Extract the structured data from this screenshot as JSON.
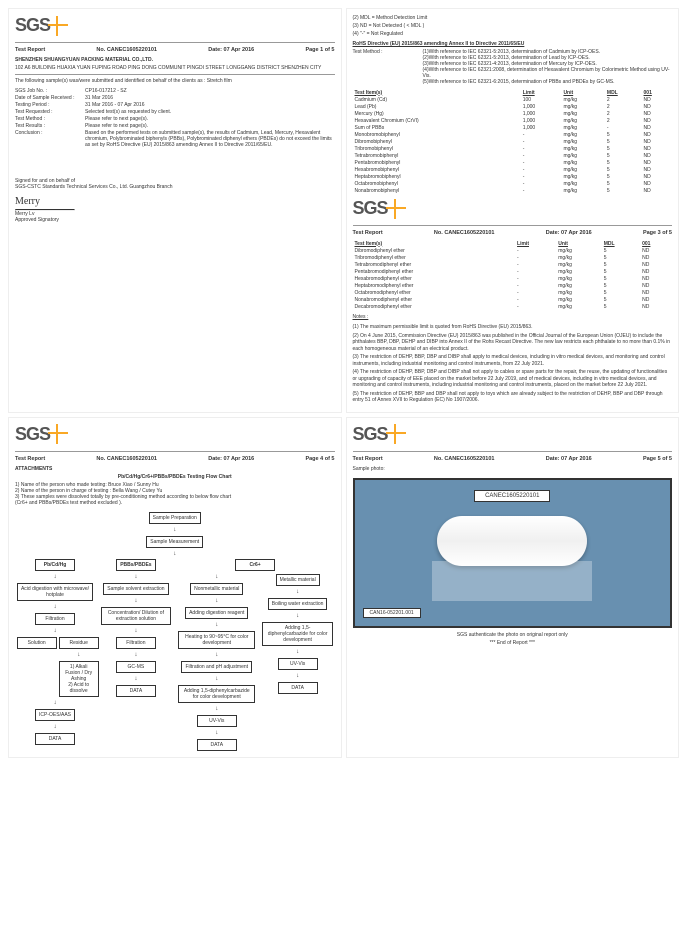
{
  "logo_text": "SGS",
  "report_label": "Test Report",
  "report_no_label": "No.",
  "report_no": "CANEC1605220101",
  "date_label": "Date:",
  "date": "07 Apr 2016",
  "page1": "Page 1 of 5",
  "page3": "Page 3 of 5",
  "page4": "Page 4 of 5",
  "page5": "Page 5 of 5",
  "company": "SHENZHEN SHUANGYUAN PACKING MATERIAL CO.,LTD.",
  "address": "102 A6 BUILDING HUAXIA YUAN FUPING ROAD PING DONG COMMUNIT PINGDI STREET LONGGANG DISTRICT SHENZHEN CITY",
  "intro": "The following sample(s) was/were submitted and identified on behalf of the clients as : Stretch film",
  "kv": {
    "job_no_k": "SGS Job No. :",
    "job_no_v": "CP16-017212 - SZ",
    "recv_k": "Date of Sample Received :",
    "recv_v": "31 Mar 2016",
    "period_k": "Testing Period :",
    "period_v": "31 Mar 2016 - 07 Apr 2016",
    "req_k": "Test Requested :",
    "req_v": "Selected test(s) as requested by client.",
    "method_k": "Test Method :",
    "method_v": "Please refer to next page(s).",
    "results_k": "Test Results :",
    "results_v": "Please refer to next page(s).",
    "concl_k": "Conclusion :",
    "concl_v": "Based on the performed tests on submitted sample(s), the results of Cadmium, Lead, Mercury, Hexavalent chromium, Polybrominated biphenyls (PBBs), Polybrominated diphenyl ethers (PBDEs) do not exceed  the limits as set by RoHS Directive (EU) 2015/863 amending Annex II to Directive 2011/65/EU."
  },
  "signed": "Signed for and on behalf of",
  "signed2": "SGS-CSTC Standards Technical Services Co., Ltd. Guangzhou Branch",
  "sig_name": "Merry",
  "sig_title1": "Merry Lv",
  "sig_title2": "Approved Signatory",
  "top_notes": [
    "(2) MDL = Method Detection Limit",
    "(3) ND = Not Detected ( < MDL )",
    "(4) \"-\" = Not Regulated"
  ],
  "directive_title": "RoHS Directive (EU) 2015/863 amending Annex II to Directive 2011/65/EU",
  "method_label2": "Test Method :",
  "methods": [
    "(1)With reference to IEC 62321-5:2013, determination of Cadmium by ICP-OES.",
    "(2)With reference to IEC 62321-5:2013, determination of Lead by ICP-OES.",
    "(3)With reference to IEC 62321-4:2013, determination of Mercury by ICP-OES.",
    "(4)With reference to IEC 62321:2008, determination of Hexavalent Chromium by Colorimetric Method using UV-Vis.",
    "(5)With reference to IEC 62321-6:2015, determination of PBBs and PBDEs by GC-MS."
  ],
  "table_headers": [
    "Test Item(s)",
    "Limit",
    "Unit",
    "MDL",
    "001"
  ],
  "table1": [
    [
      "Cadmium (Cd)",
      "100",
      "mg/kg",
      "2",
      "ND"
    ],
    [
      "Lead (Pb)",
      "1,000",
      "mg/kg",
      "2",
      "ND"
    ],
    [
      "Mercury (Hg)",
      "1,000",
      "mg/kg",
      "2",
      "ND"
    ],
    [
      "Hexavalent Chromium (CrVI)",
      "1,000",
      "mg/kg",
      "2",
      "ND"
    ],
    [
      "Sum of PBBs",
      "1,000",
      "mg/kg",
      "-",
      "ND"
    ],
    [
      "Monobromobiphenyl",
      "-",
      "mg/kg",
      "5",
      "ND"
    ],
    [
      "Dibromobiphenyl",
      "-",
      "mg/kg",
      "5",
      "ND"
    ],
    [
      "Tribromobiphenyl",
      "-",
      "mg/kg",
      "5",
      "ND"
    ],
    [
      "Tetrabromobiphenyl",
      "-",
      "mg/kg",
      "5",
      "ND"
    ],
    [
      "Pentabromobiphenyl",
      "-",
      "mg/kg",
      "5",
      "ND"
    ],
    [
      "Hexabromobiphenyl",
      "-",
      "mg/kg",
      "5",
      "ND"
    ],
    [
      "Heptabromobiphenyl",
      "-",
      "mg/kg",
      "5",
      "ND"
    ],
    [
      "Octabromobiphenyl",
      "-",
      "mg/kg",
      "5",
      "ND"
    ],
    [
      "Nonabromobiphenyl",
      "-",
      "mg/kg",
      "5",
      "ND"
    ]
  ],
  "table2": [
    [
      "Dibromodiphenyl ether",
      "-",
      "mg/kg",
      "5",
      "ND"
    ],
    [
      "Tribromodiphenyl ether",
      "-",
      "mg/kg",
      "5",
      "ND"
    ],
    [
      "Tetrabromodiphenyl ether",
      "-",
      "mg/kg",
      "5",
      "ND"
    ],
    [
      "Pentabromodiphenyl ether",
      "-",
      "mg/kg",
      "5",
      "ND"
    ],
    [
      "Hexabromodiphenyl ether",
      "-",
      "mg/kg",
      "5",
      "ND"
    ],
    [
      "Heptabromodiphenyl ether",
      "-",
      "mg/kg",
      "5",
      "ND"
    ],
    [
      "Octabromodiphenyl ether",
      "-",
      "mg/kg",
      "5",
      "ND"
    ],
    [
      "Nonabromodiphenyl ether",
      "-",
      "mg/kg",
      "5",
      "ND"
    ],
    [
      "Decabromodiphenyl ether",
      "-",
      "mg/kg",
      "5",
      "ND"
    ]
  ],
  "notes_label": "Notes :",
  "notes_list": [
    "(1) The maximum permissible limit is quoted from RoHS Directive (EU) 2015/863.",
    "(2) On 4 June  2015, Commission Directive (EU) 2015/863 was published in the Official Journal of the European Union (OJEU) to include the phthalates BBP, DBP, DEHP and DIBP into Annex II of the Rohs Recast Directive. The new law restricts each phthalate to no more than 0.1% in each homogeneous material of an electrical product.",
    "(3) The restriction of DEHP, BBP, DBP and DIBP shall apply to medical devices, including in vitro medical devices, and monitoring and control instruments, including industrial monitoring and control instruments, from 22 July 2021.",
    "(4) The restriction of DEHP, BBP, DBP and DIBP shall not apply to cables or spare parts for the repair, the reuse, the updating of functionalities or upgrading of capacity of EEE placed on the market before 22 July 2019, and of medical devices, including in vitro medical devices, and monitoring and control instruments, including industrial monitoring and control instruments, placed on the market before 22 July 2021.",
    "(5) The restriction of DEHP, BBP and DBP shall not apply to toys which are already subject to the restriction of DEHP, BBP and DBP through entry 51 of Annex XVII to Regulation (EC) No 1907/2006."
  ],
  "attachments": "ATTACHMENTS",
  "flow_title": "Pb/Cd/Hg/Cr6+/PBBs/PBDEs Testing Flow Chart",
  "flow_notes": [
    "1) Name of the person who made testing:  Bruce Xiao / Sunny Hu",
    "2) Name of the person in charge of testing : Bella Wang / Cutey Yu",
    "3) These samples were dissolved totally by  pre-conditioning method according to below flow chart",
    "    (Cr6+ and PBBs/PBDEs test method excluded )."
  ],
  "flow": {
    "b1": "Sample Preparation",
    "b2": "Sample Measurement",
    "c1": "Pb/Cd/Hg",
    "c2": "PBBs/PBDEs",
    "c3": "Cr6+",
    "a1": "Acid digestion with microwave/ hotplate",
    "a2": "Filtration",
    "a3": "Solution",
    "a4": "Residue",
    "a5": "1) Alkali Fusion / Dry Ashing\n2) Acid to dissolve",
    "a6": "ICP-OES/AAS",
    "a7": "DATA",
    "p1": "Sample solvent extraction",
    "p2": "Concentration/ Dilution of extraction solution",
    "p3": "Filtration",
    "p4": "GC-MS",
    "p5": "DATA",
    "n1": "Nonmetallic material",
    "n2": "Adding digestion reagent",
    "n3": "Heating to 90~95°C for color development",
    "n4": "Filtration and pH adjustment",
    "n5": "Adding 1,5-diphenylcarbazide for color development",
    "n6": "UV-Vis",
    "n7": "DATA",
    "m1": "Metallic material",
    "m2": "Boiling water extraction",
    "m3": "Adding 1,5-diphenylcarbazide for color development",
    "m4": "UV-Vis",
    "m5": "DATA"
  },
  "sample_photo_label": "Sample photo:",
  "photo_id_top": "CANEC1605220101",
  "photo_id_bottom": "CAN16-052201.001",
  "auth_text": "SGS authenticate the photo on original report only",
  "end_text": "*** End of Report ***"
}
